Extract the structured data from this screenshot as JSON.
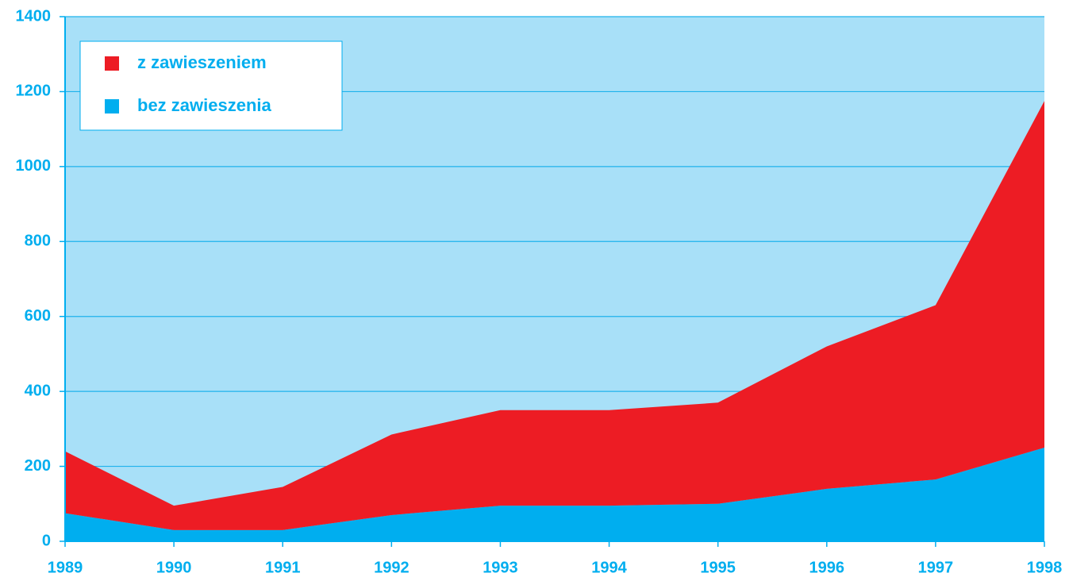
{
  "chart_data": {
    "type": "area",
    "stacked": true,
    "x": [
      1989,
      1990,
      1991,
      1992,
      1993,
      1994,
      1995,
      1996,
      1997,
      1998
    ],
    "xlim": [
      1989,
      1998
    ],
    "xticks": [
      1989,
      1990,
      1991,
      1992,
      1993,
      1994,
      1995,
      1996,
      1997,
      1998
    ],
    "ylim": [
      0,
      1400
    ],
    "yticks": [
      0,
      200,
      400,
      600,
      800,
      1000,
      1200,
      1400
    ],
    "grid": true,
    "legend": "top-left",
    "background": "#a8e0f8",
    "series": [
      {
        "name": "z zawieszeniem",
        "color": "#ed1c24",
        "values": [
          165,
          65,
          115,
          215,
          255,
          255,
          270,
          380,
          465,
          925
        ]
      },
      {
        "name": "bez zawieszenia",
        "color": "#00aeef",
        "values": [
          75,
          30,
          30,
          70,
          95,
          95,
          100,
          140,
          165,
          250
        ]
      }
    ]
  }
}
